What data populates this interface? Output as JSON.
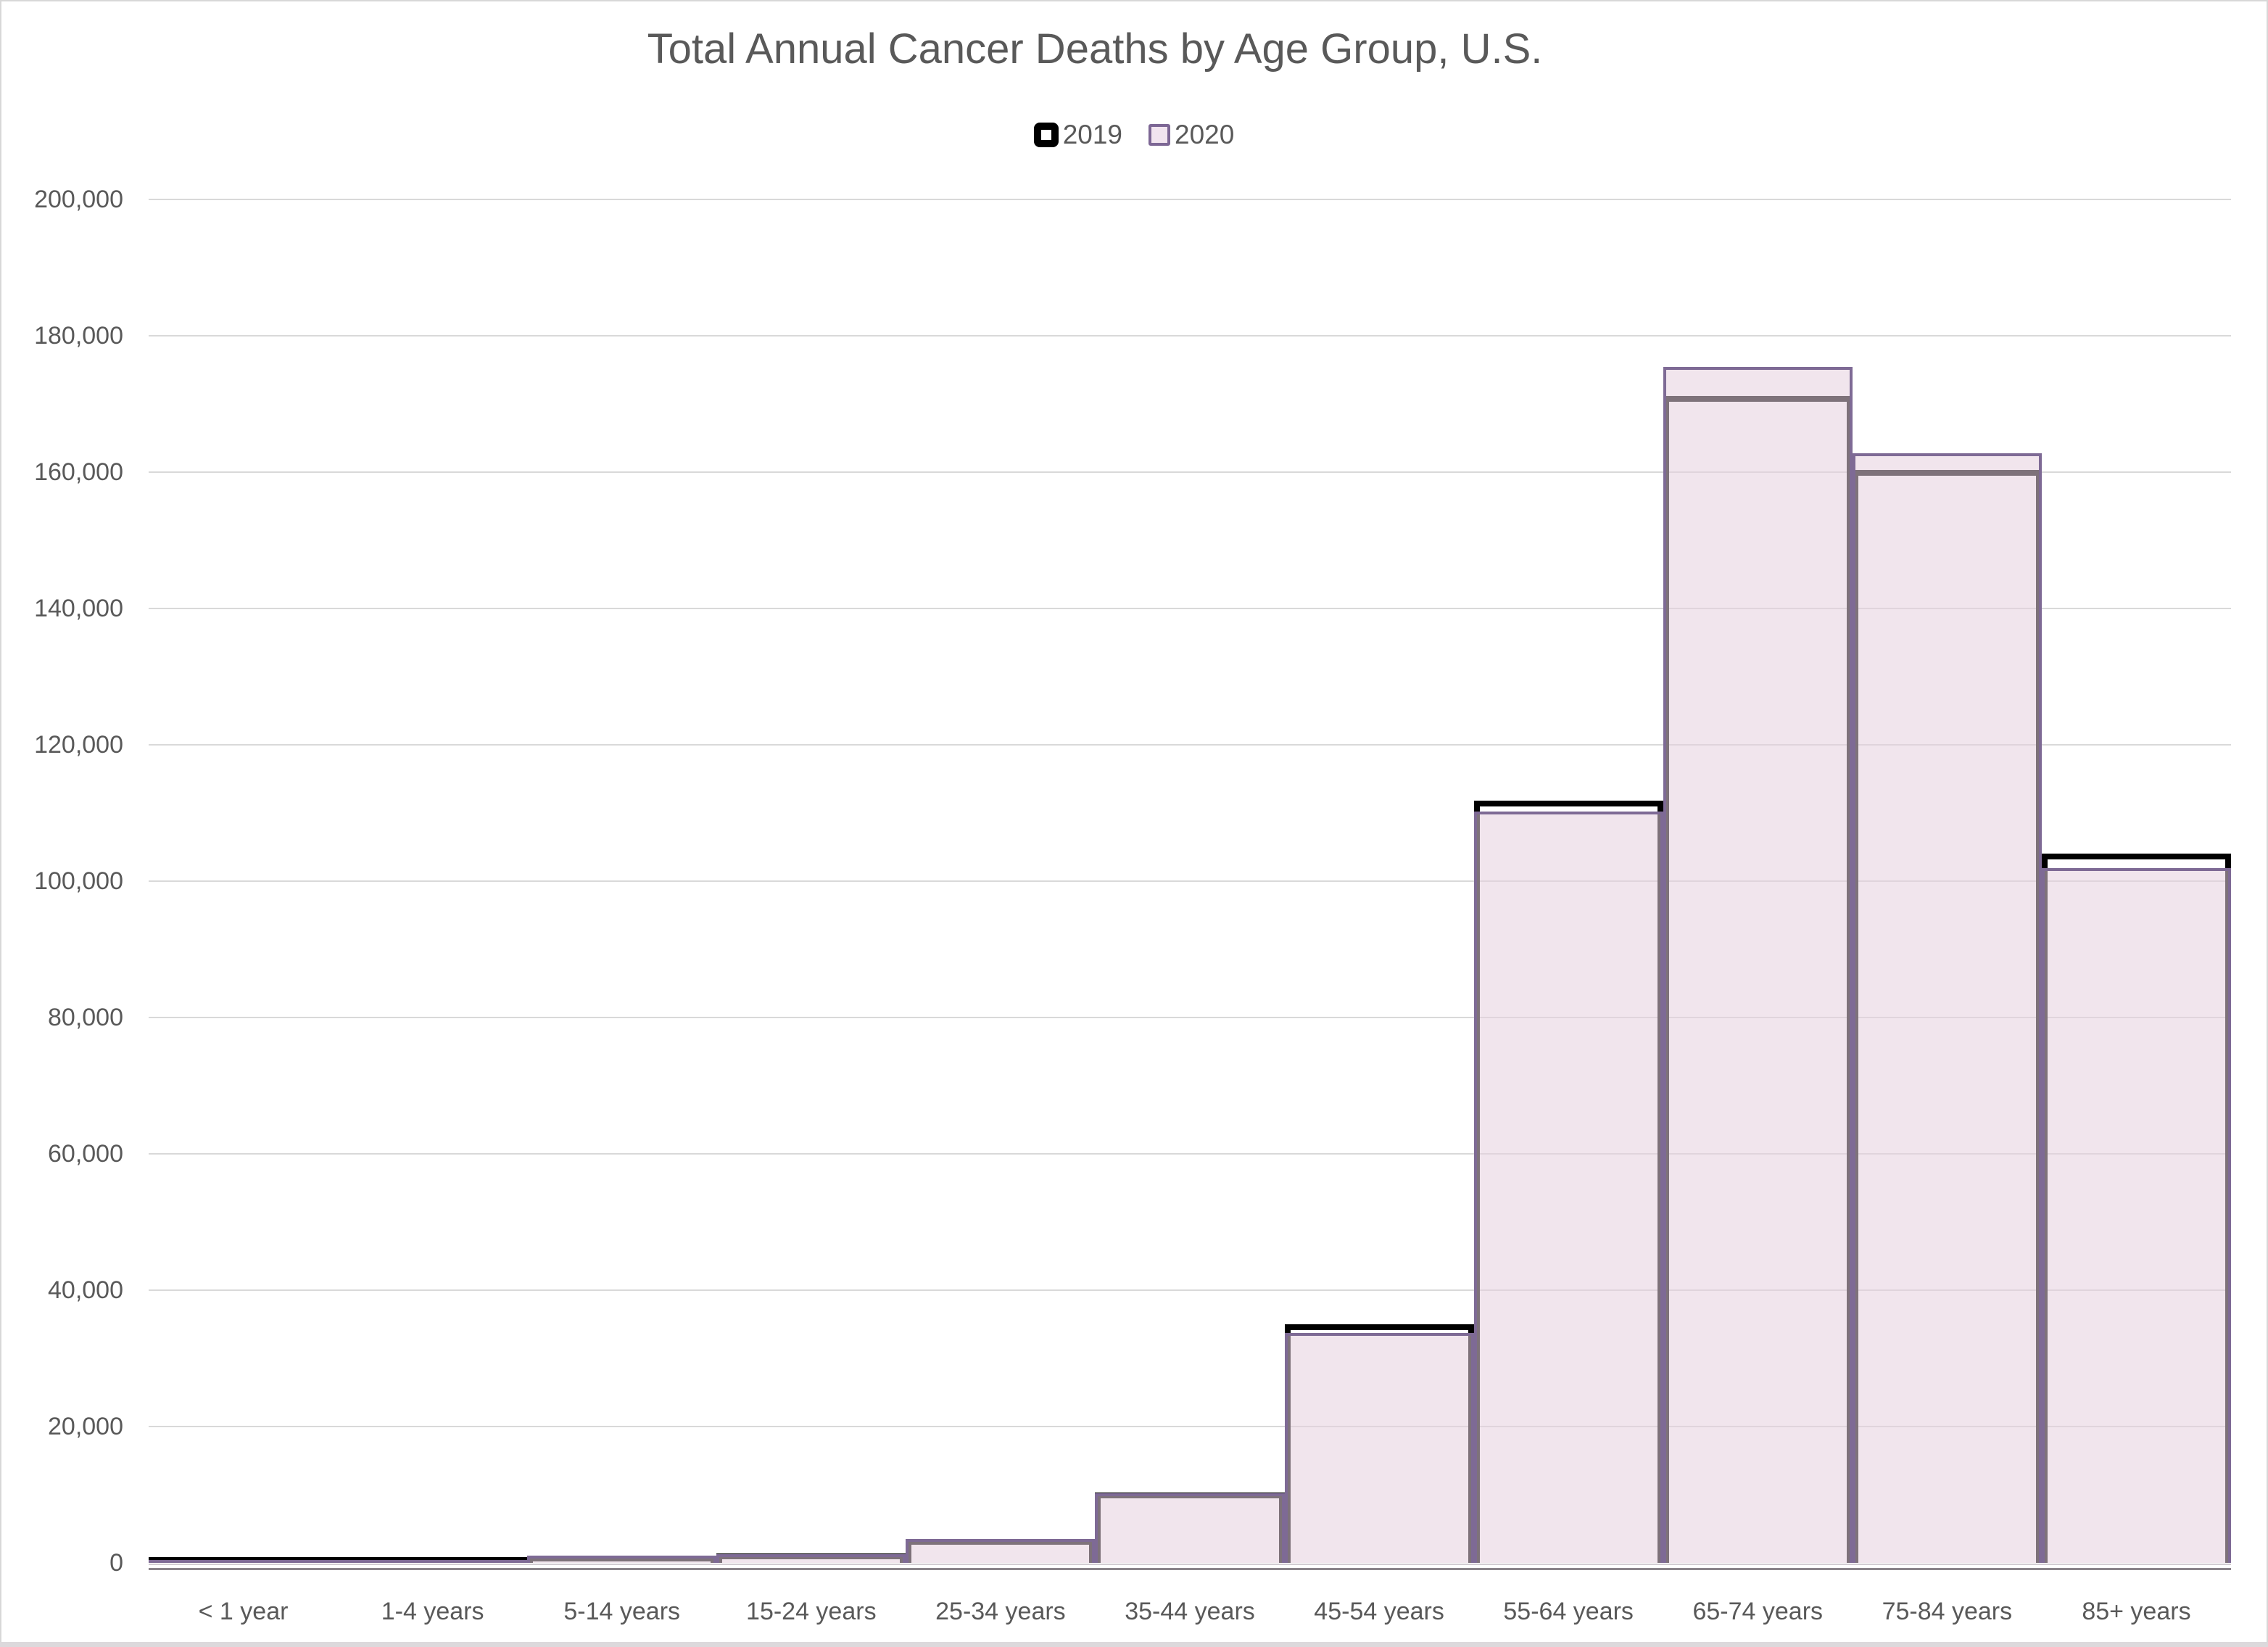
{
  "chart_data": {
    "type": "bar",
    "title": "Total Annual Cancer Deaths by Age Group, U.S.",
    "xlabel": "",
    "ylabel": "",
    "categories": [
      "< 1 year",
      "1-4 years",
      "5-14 years",
      "15-24 years",
      "25-34 years",
      "35-44 years",
      "45-54 years",
      "55-64 years",
      "65-74 years",
      "75-84 years",
      "85+ years"
    ],
    "series": [
      {
        "name": "2019",
        "values": [
          60,
          339,
          1053,
          1358,
          3547,
          10336,
          34947,
          111765,
          171127,
          160332,
          104006
        ],
        "border_color": "#000000",
        "fill_color": "none"
      },
      {
        "name": "2020",
        "values": [
          54,
          302,
          1011,
          1302,
          3478,
          10229,
          33759,
          110210,
          175406,
          162743,
          101883
        ],
        "border_color": "#7e6a95",
        "fill_color": "rgba(229,207,222,0.55)"
      }
    ],
    "ylim": [
      0,
      200000
    ],
    "ytick_step": 20000,
    "ytick_labels": [
      "0",
      "20,000",
      "40,000",
      "60,000",
      "80,000",
      "100,000",
      "120,000",
      "140,000",
      "160,000",
      "180,000",
      "200,000"
    ],
    "grid": "horizontal",
    "gridline_color": "#d9d9d9",
    "text_color": "#595959",
    "legend_position": "top-center",
    "bar_gap_width": 0,
    "series_overlap": "100%"
  }
}
